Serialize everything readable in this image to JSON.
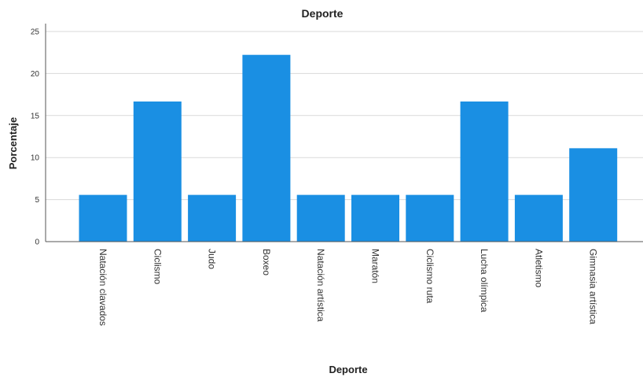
{
  "chart_data": {
    "type": "bar",
    "title": "Deporte",
    "xlabel": "Deporte",
    "ylabel": "Porcentaje",
    "categories": [
      "Natación clavados",
      "Ciclismo",
      "Judo",
      "Boxeo",
      "Natación artística",
      "Maratón",
      "Ciclismo ruta",
      "Lucha olímpica",
      "Atletismo",
      "Gimnasia artística"
    ],
    "values": [
      5.56,
      16.67,
      5.56,
      22.22,
      5.56,
      5.56,
      5.56,
      16.67,
      5.56,
      11.11
    ],
    "ylim": [
      0,
      25
    ],
    "yticks": [
      0,
      5,
      10,
      15,
      20,
      25
    ],
    "grid": true,
    "bar_color": "#1a8fe3"
  }
}
